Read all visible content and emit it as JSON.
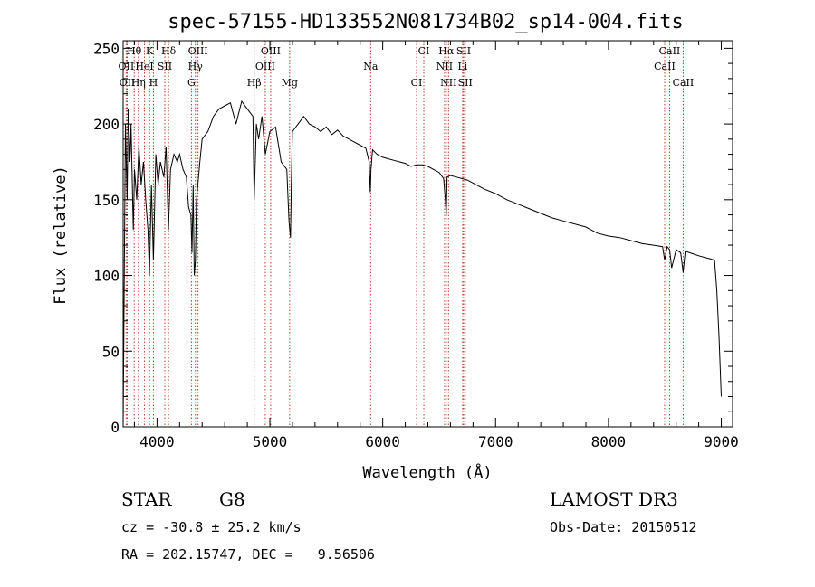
{
  "colors": {
    "spectrum": "#000000",
    "line_marker": "#c0392b",
    "axis": "#000000"
  },
  "chart_data": {
    "type": "line",
    "title": "spec-57155-HD133552N081734B02_sp14-004.fits",
    "xlabel": "Wavelength (Å)",
    "ylabel": "Flux (relative)",
    "xlim": [
      3700,
      9100
    ],
    "ylim": [
      0,
      255
    ],
    "xticks": [
      4000,
      5000,
      6000,
      7000,
      8000,
      9000
    ],
    "yticks": [
      0,
      50,
      100,
      150,
      200,
      250
    ],
    "series": [
      {
        "name": "spectrum",
        "x": [
          3700,
          3720,
          3735,
          3745,
          3760,
          3770,
          3790,
          3800,
          3820,
          3840,
          3860,
          3880,
          3900,
          3920,
          3933,
          3950,
          3968,
          3990,
          4010,
          4030,
          4060,
          4080,
          4101,
          4120,
          4150,
          4180,
          4200,
          4230,
          4260,
          4280,
          4300,
          4310,
          4320,
          4330,
          4340,
          4350,
          4380,
          4400,
          4450,
          4500,
          4550,
          4600,
          4650,
          4700,
          4750,
          4800,
          4850,
          4861,
          4880,
          4900,
          4930,
          4960,
          5000,
          5050,
          5100,
          5150,
          5170,
          5183,
          5190,
          5200,
          5250,
          5300,
          5350,
          5400,
          5450,
          5500,
          5550,
          5600,
          5650,
          5700,
          5750,
          5800,
          5850,
          5880,
          5890,
          5896,
          5910,
          5950,
          6000,
          6050,
          6100,
          6150,
          6200,
          6250,
          6300,
          6350,
          6400,
          6450,
          6500,
          6540,
          6555,
          6563,
          6570,
          6600,
          6650,
          6700,
          6750,
          6800,
          6900,
          7000,
          7100,
          7200,
          7300,
          7400,
          7500,
          7600,
          7700,
          7800,
          7900,
          8000,
          8100,
          8200,
          8300,
          8400,
          8480,
          8498,
          8520,
          8542,
          8560,
          8600,
          8640,
          8662,
          8680,
          8720,
          8760,
          8800,
          8850,
          8900,
          8940,
          8960,
          8980,
          9000
        ],
        "y": [
          0,
          200,
          150,
          210,
          175,
          200,
          130,
          170,
          150,
          185,
          160,
          175,
          150,
          130,
          100,
          160,
          110,
          180,
          160,
          175,
          165,
          185,
          130,
          170,
          180,
          175,
          180,
          170,
          165,
          145,
          140,
          115,
          160,
          100,
          110,
          150,
          175,
          190,
          195,
          205,
          210,
          212,
          214,
          200,
          215,
          210,
          205,
          150,
          200,
          190,
          205,
          180,
          195,
          198,
          175,
          170,
          135,
          125,
          160,
          195,
          200,
          205,
          200,
          198,
          195,
          198,
          193,
          196,
          192,
          190,
          188,
          186,
          184,
          175,
          155,
          170,
          183,
          180,
          178,
          177,
          176,
          175,
          174,
          172,
          173,
          173,
          172,
          170,
          168,
          164,
          150,
          140,
          165,
          166,
          165,
          164,
          163,
          161,
          157,
          154,
          150,
          147,
          144,
          141,
          138,
          136,
          134,
          132,
          128,
          126,
          125,
          123,
          121,
          120,
          119,
          110,
          119,
          117,
          105,
          117,
          115,
          102,
          116,
          115,
          114,
          113,
          112,
          111,
          110,
          90,
          60,
          20
        ]
      }
    ],
    "line_labels": [
      {
        "label": "Hθ",
        "wave": 3798,
        "row": 1
      },
      {
        "label": "K",
        "wave": 3934,
        "row": 1
      },
      {
        "label": "Hδ",
        "wave": 4102,
        "row": 1
      },
      {
        "label": "OIII",
        "wave": 4363,
        "row": 1
      },
      {
        "label": "OIII",
        "wave": 5007,
        "row": 1
      },
      {
        "label": "CI",
        "wave": 6364,
        "row": 1
      },
      {
        "label": "Hα",
        "wave": 6563,
        "row": 1
      },
      {
        "label": "SII",
        "wave": 6717,
        "row": 1
      },
      {
        "label": "CaII",
        "wave": 8542,
        "row": 1
      },
      {
        "label": "OII",
        "wave": 3727,
        "row": 2
      },
      {
        "label": "HeI",
        "wave": 3889,
        "row": 2
      },
      {
        "label": "SII",
        "wave": 4069,
        "row": 2
      },
      {
        "label": "Hγ",
        "wave": 4340,
        "row": 2
      },
      {
        "label": "OIII",
        "wave": 4959,
        "row": 2
      },
      {
        "label": "Na",
        "wave": 5893,
        "row": 2
      },
      {
        "label": "NII",
        "wave": 6548,
        "row": 2
      },
      {
        "label": "Li",
        "wave": 6708,
        "row": 2
      },
      {
        "label": "CaII",
        "wave": 8498,
        "row": 2
      },
      {
        "label": "OII",
        "wave": 3736,
        "row": 3
      },
      {
        "label": "Hη",
        "wave": 3835,
        "row": 3
      },
      {
        "label": "H",
        "wave": 3968,
        "row": 3
      },
      {
        "label": "G",
        "wave": 4305,
        "row": 3
      },
      {
        "label": "Hβ",
        "wave": 4861,
        "row": 3
      },
      {
        "label": "Mg",
        "wave": 5175,
        "row": 3
      },
      {
        "label": "CI",
        "wave": 6300,
        "row": 3
      },
      {
        "label": "NII",
        "wave": 6583,
        "row": 3
      },
      {
        "label": "SII",
        "wave": 6731,
        "row": 3
      },
      {
        "label": "CaII",
        "wave": 8662,
        "row": 3
      }
    ]
  },
  "info": {
    "star_class": "STAR",
    "spectral_type": "G8",
    "survey": "LAMOST DR3",
    "cz": "cz = -30.8 ± 25.2 km/s",
    "obs_date": "Obs-Date: 20150512",
    "coords": "RA = 202.15747, DEC =   9.56506"
  }
}
